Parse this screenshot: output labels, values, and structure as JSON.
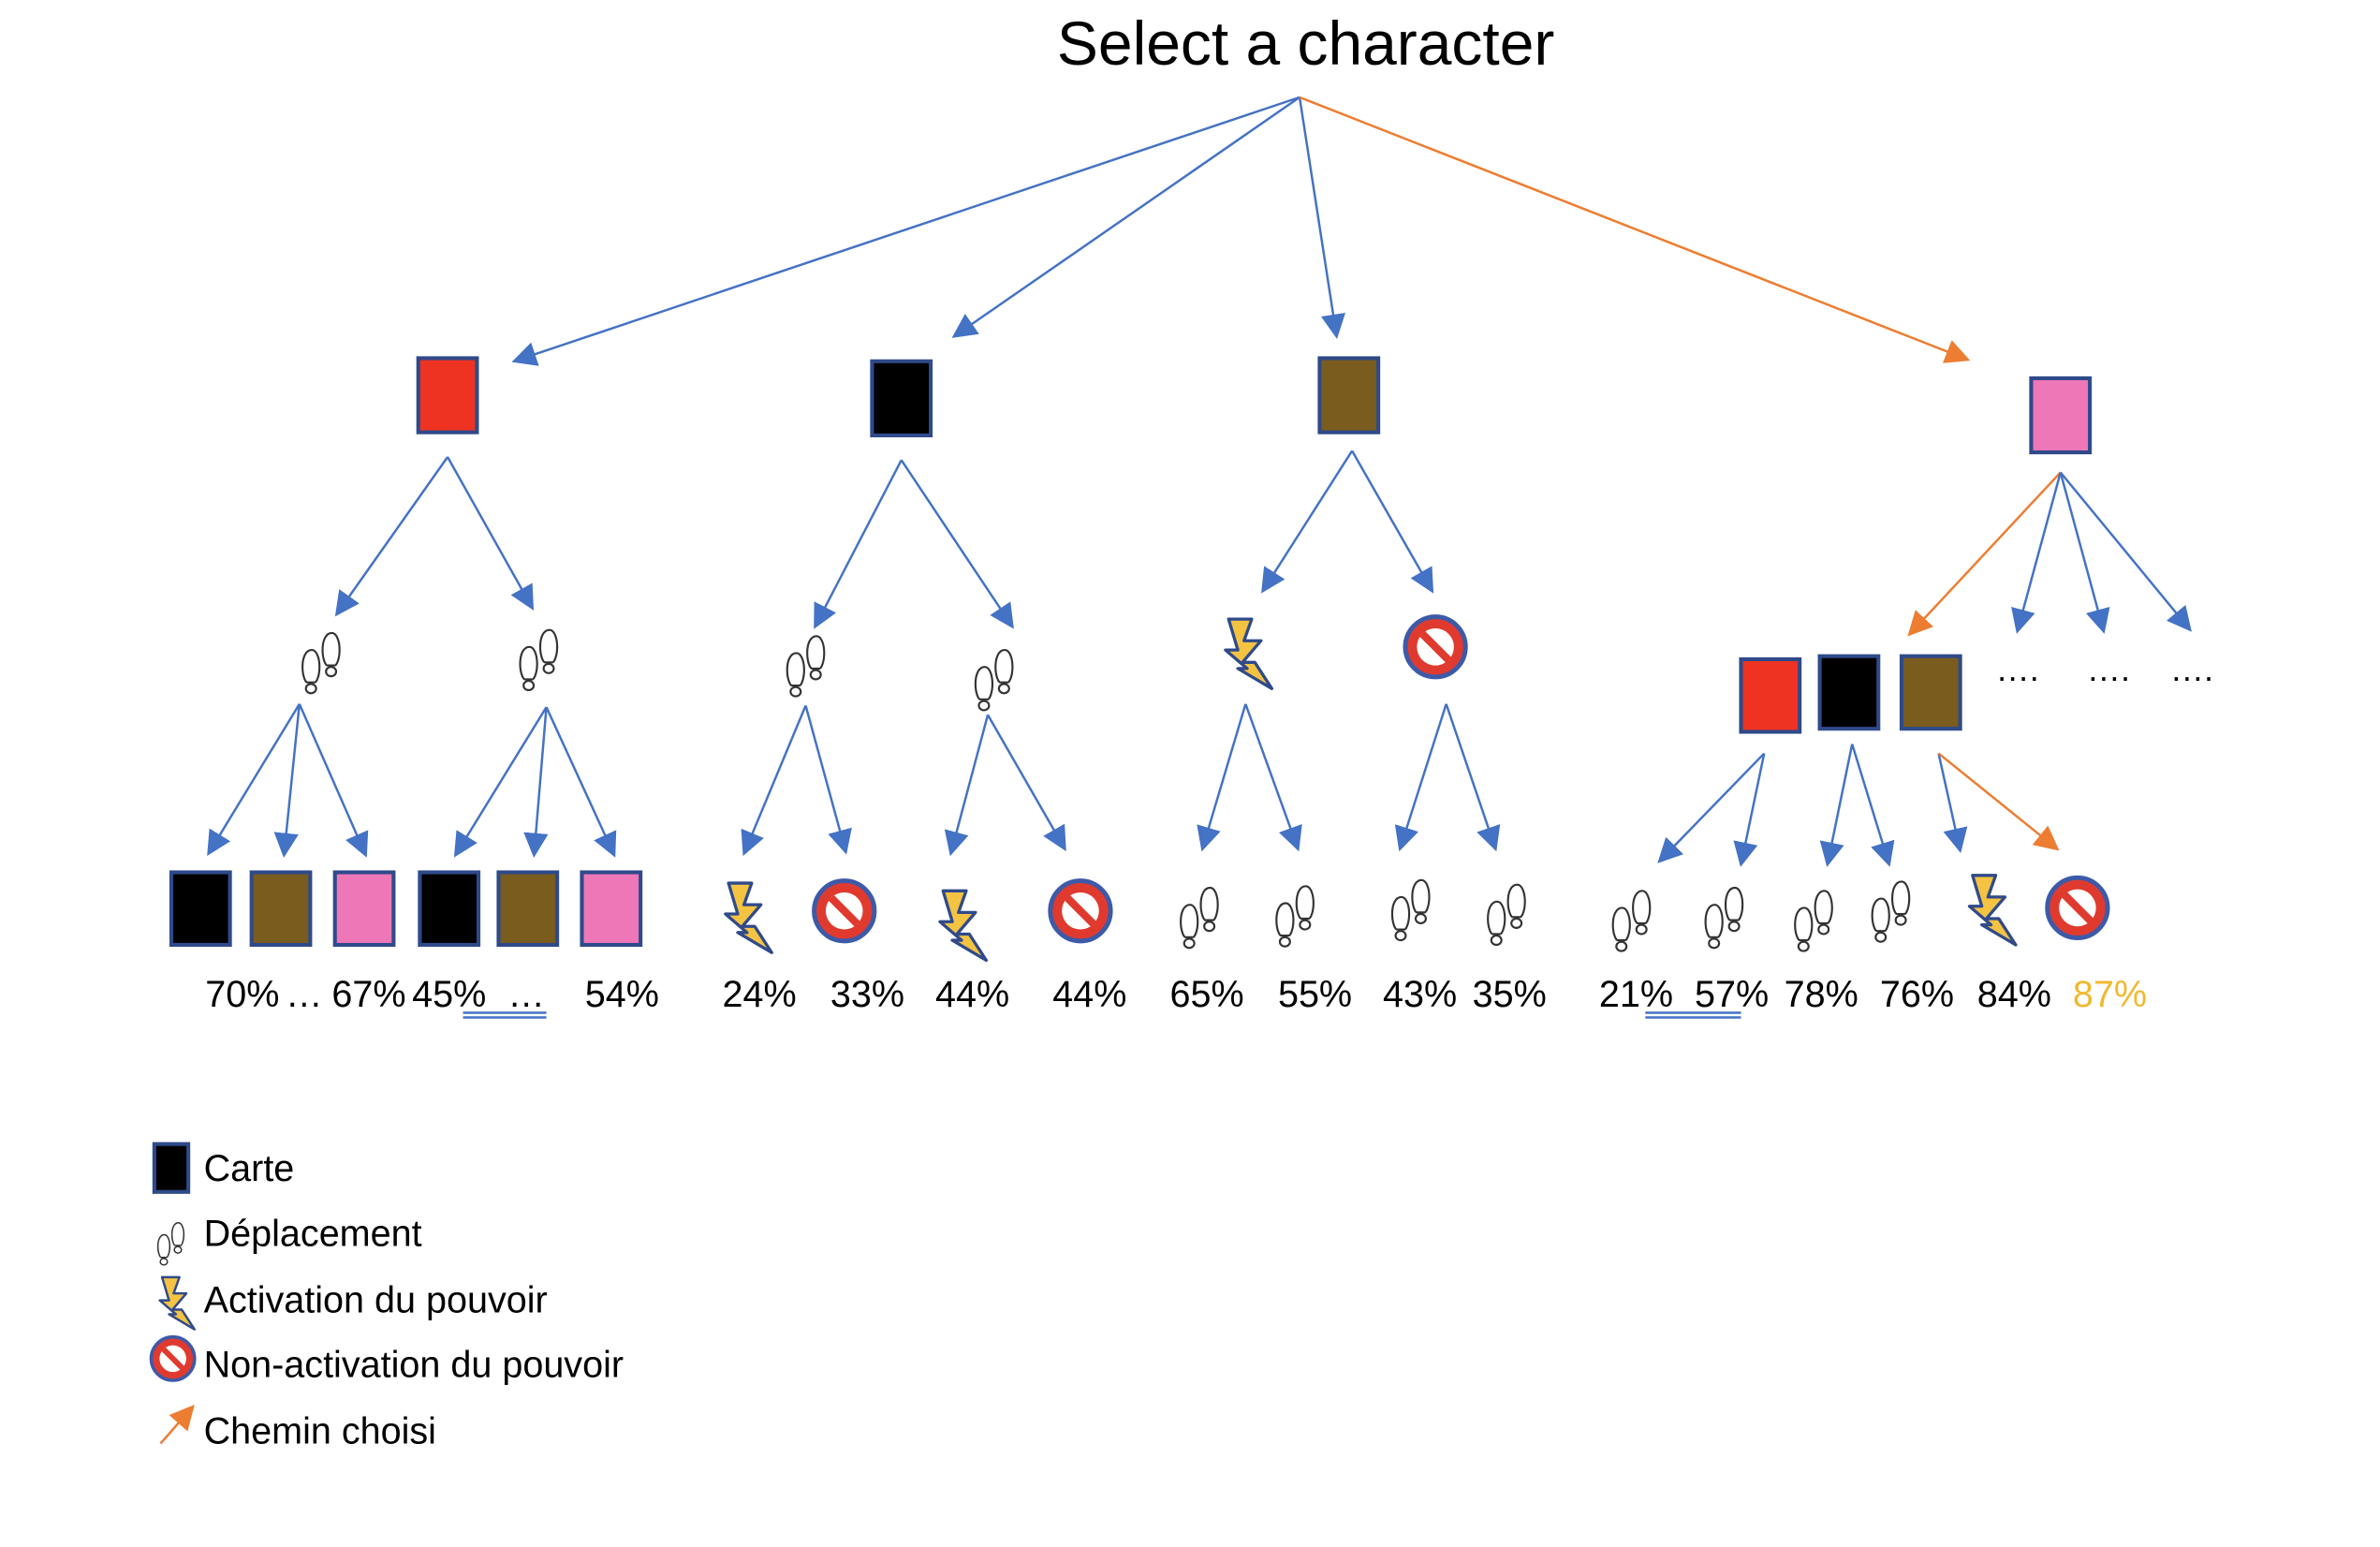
{
  "title": "Select a character",
  "colors": {
    "red": "#EE3322",
    "black": "#000000",
    "brown": "#7A5C1E",
    "pink": "#EE77B8",
    "card_border": "#2F4A8A",
    "edge_blue": "#4472C4",
    "edge_orange": "#ED7D31",
    "highlight_percent": "#F2B82E",
    "lightning_fill": "#F5C342",
    "stop_red": "#E03A2F",
    "stop_blue": "#3D5AA8"
  },
  "icons": {
    "card": "card-icon",
    "footsteps": "footsteps-icon",
    "lightning": "lightning-icon",
    "no_entry": "no-entry-icon",
    "arrow": "arrow-icon"
  },
  "level1": [
    "red",
    "black",
    "brown",
    "pink"
  ],
  "chosen_level1": "pink",
  "percents": {
    "p1": "70%",
    "p2": "…",
    "p3": "67%",
    "p4": "45%",
    "p5": "…",
    "p6": "54%",
    "p7": "24%",
    "p8": "33%",
    "p9": "44%",
    "p10": "44%",
    "p11": "65%",
    "p12": "55%",
    "p13": "43%",
    "p14": "35%",
    "p15": "21%",
    "p16": "57%",
    "p17": "78%",
    "p18": "76%",
    "p19": "84%",
    "p20": "87%"
  },
  "ellipsis": {
    "e1": "….",
    "e2": "….",
    "e3": "…."
  },
  "legend": [
    {
      "icon": "card-icon",
      "label": "Carte"
    },
    {
      "icon": "footsteps-icon",
      "label": "Déplacement"
    },
    {
      "icon": "lightning-icon",
      "label": "Activation du pouvoir"
    },
    {
      "icon": "no-entry-icon",
      "label": "Non-activation du pouvoir"
    },
    {
      "icon": "arrow-icon",
      "label": "Chemin choisi"
    }
  ]
}
